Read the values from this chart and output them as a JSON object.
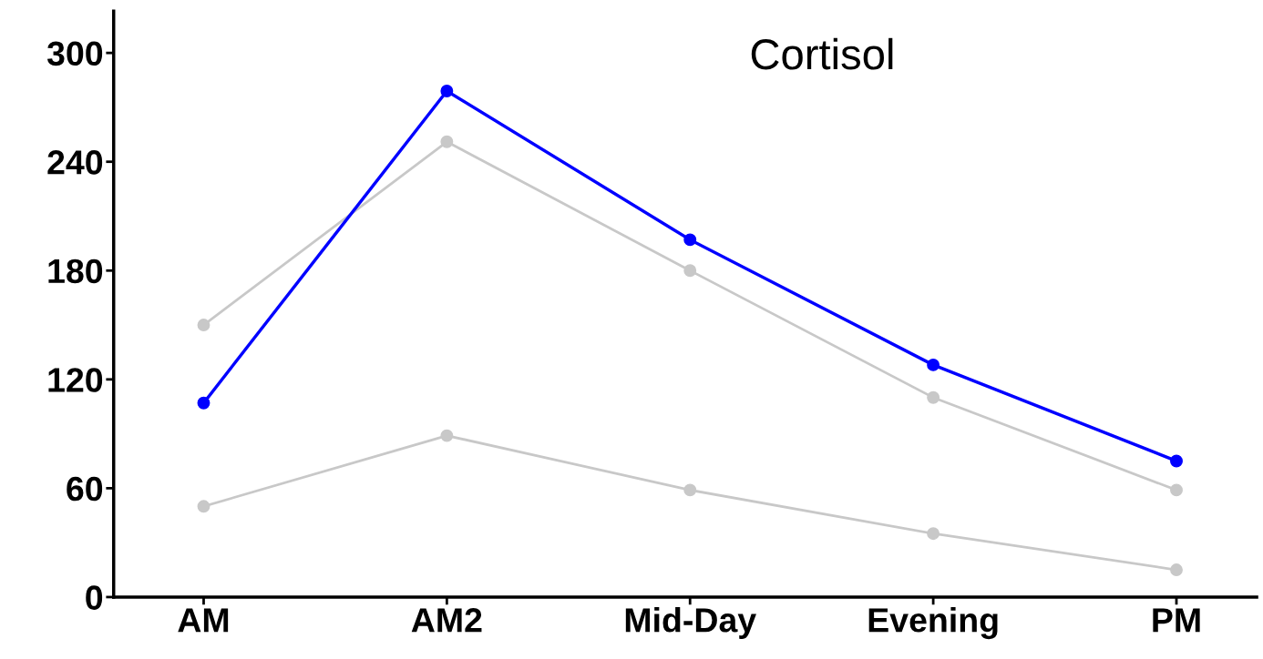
{
  "chart_data": {
    "type": "line",
    "title": "Cortisol",
    "categories": [
      "AM",
      "AM2",
      "Mid-Day",
      "Evening",
      "PM"
    ],
    "series": [
      {
        "color": "#c8c8c8",
        "values": [
          150,
          251,
          180,
          110,
          59
        ]
      },
      {
        "color": "#c8c8c8",
        "values": [
          50,
          89,
          59,
          35,
          15
        ]
      },
      {
        "color": "#0000ff",
        "values": [
          107,
          279,
          197,
          128,
          75
        ]
      }
    ],
    "ylim": [
      0,
      323
    ],
    "yticks": [
      0,
      60,
      120,
      180,
      240,
      300
    ],
    "grid": false,
    "legend": false,
    "marker": "circle",
    "line_style": "solid"
  }
}
